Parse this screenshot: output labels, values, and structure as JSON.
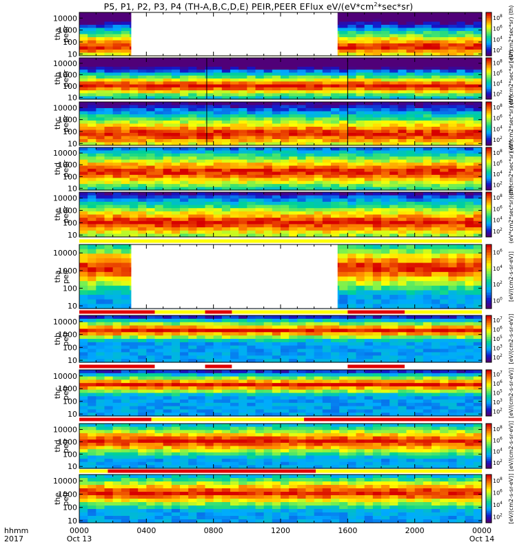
{
  "title": {
    "prefix": "P5, P1, P2, P3, P4 (TH-A,B,C,D,E) PEIR,PEER EFlux eV/(eV*cm",
    "sup": "2",
    "suffix": "*sec*sr)"
  },
  "footer": {
    "row1_label": "hhmm",
    "row2_label": "2017",
    "date_start": "Oct 13",
    "date_end": "Oct 14"
  },
  "colors": {
    "red": "#e00000",
    "yellow": "#ffff00",
    "white": "#ffffff"
  },
  "chart_data": {
    "type": "heatmap",
    "title": "P5, P1, P2, P3, P4 (TH-A,B,C,D,E) PEIR,PEER EFlux eV/(eV*cm2*sec*sr)",
    "x_axis": {
      "unit": "hhmm",
      "range": [
        0,
        24
      ],
      "tick_labels": [
        "0000",
        "0400",
        "0800",
        "1200",
        "1600",
        "2000",
        "0000"
      ],
      "tick_values": [
        0,
        4,
        8,
        12,
        16,
        20,
        24
      ],
      "minor_step": 1
    },
    "y_axis": {
      "scale": "log",
      "range": [
        7,
        30000
      ],
      "tick_labels": [
        "10",
        "100",
        "1000",
        "10000"
      ],
      "tick_values": [
        10,
        100,
        1000,
        10000
      ]
    },
    "panels": [
      {
        "probe": "tha",
        "species": "peer",
        "label_probe": "tha",
        "label_type": "peer",
        "gaps": [
          [
            3.1,
            15.4
          ]
        ],
        "core_log": [
          1.0,
          2.2
        ],
        "mode": "electron",
        "colorbar": {
          "stack": [
            {
              "exp": "8"
            },
            {
              "exp": "6"
            },
            {
              "exp": "4"
            },
            {
              "exp": "2"
            }
          ],
          "side": "(eV*cm2*sec*sr) (th)"
        }
      },
      {
        "probe": "thb",
        "species": "peer",
        "label_probe": "thb",
        "label_type": "peer",
        "gaps": [],
        "core_log": [
          1.6,
          2.4
        ],
        "mode": "electron",
        "lines": [
          7.6,
          16.0
        ],
        "colorbar": {
          "stack": [
            {
              "exp": "8"
            },
            {
              "exp": "6"
            },
            {
              "exp": "4"
            },
            {
              "exp": "2"
            }
          ],
          "side": "(eV*cm2*sec*sr) (th)"
        }
      },
      {
        "probe": "thc",
        "species": "peer",
        "label_probe": "thc",
        "label_type": "peer",
        "gaps": [],
        "core_log": [
          1.0,
          2.6
        ],
        "mode": "electron",
        "lines": [
          7.6,
          16.0
        ],
        "colorbar": {
          "stack": [
            {
              "exp": "8"
            },
            {
              "exp": "6"
            },
            {
              "exp": "4"
            },
            {
              "exp": "2"
            }
          ],
          "side": "(eV*cm2*sec*sr) (th)"
        }
      },
      {
        "probe": "thd",
        "species": "peer",
        "label_probe": "thd",
        "label_type": "peer",
        "gaps": [],
        "core_log": [
          1.6,
          3.2
        ],
        "mode": "electron",
        "colorbar": {
          "stack": [
            {
              "exp": "8"
            },
            {
              "exp": "6"
            },
            {
              "exp": "4"
            },
            {
              "exp": "2"
            }
          ],
          "side": "(eV*cm2*sec*sr) (th)"
        }
      },
      {
        "probe": "the",
        "species": "peer",
        "label_probe": "the",
        "label_type": "peer",
        "gaps": [],
        "core_log": [
          1.2,
          2.8
        ],
        "mode": "electron",
        "colorbar": {
          "stack": [
            {
              "exp": "8"
            },
            {
              "exp": "6"
            },
            {
              "exp": "4"
            },
            {
              "exp": "2"
            }
          ],
          "side": "(eV*cm2*sec*sr) (th)"
        }
      },
      {
        "probe": "tha",
        "species": "peir",
        "label_probe": "tha",
        "label_type": "peir",
        "gaps": [
          [
            3.1,
            15.4
          ]
        ],
        "core_log": [
          2.5,
          3.8
        ],
        "mode": "ion",
        "colorbar": {
          "stack": [
            {
              "exp": "6"
            },
            {
              "exp": "4"
            },
            {
              "exp": "2"
            },
            {
              "exp": "0"
            }
          ],
          "side": "[eV/(cm2-s-sr-eV)]"
        },
        "mode_bar": [
          {
            "from": 0,
            "to": 24,
            "color": "yellow"
          }
        ]
      },
      {
        "probe": "thb",
        "species": "peir",
        "label_probe": "thb",
        "label_type": "peir",
        "gaps": [],
        "core_log": [
          3.1,
          3.5
        ],
        "mode": "ion",
        "colorbar": {
          "stack": [
            {
              "exp": "7"
            },
            {
              "exp": "6"
            },
            {
              "exp": "5"
            },
            {
              "exp": "3"
            },
            {
              "exp": "2"
            }
          ],
          "side": "[eV/(cm2-s-sr-eV)]"
        },
        "mode_bar": [
          {
            "from": 0,
            "to": 4.5,
            "color": "red"
          },
          {
            "from": 4.5,
            "to": 7.5,
            "color": "yellow"
          },
          {
            "from": 7.5,
            "to": 9.1,
            "color": "red"
          },
          {
            "from": 9.1,
            "to": 16.0,
            "color": "yellow"
          },
          {
            "from": 16.0,
            "to": 19.4,
            "color": "red"
          },
          {
            "from": 19.4,
            "to": 24,
            "color": "yellow"
          }
        ]
      },
      {
        "probe": "thc",
        "species": "peir",
        "label_probe": "thc",
        "label_type": "peir",
        "gaps": [],
        "core_log": [
          3.1,
          3.5
        ],
        "mode": "ion",
        "colorbar": {
          "stack": [
            {
              "exp": "7"
            },
            {
              "exp": "6"
            },
            {
              "exp": "5"
            },
            {
              "exp": "3"
            },
            {
              "exp": "2"
            }
          ],
          "side": "[eV/(cm2-s-sr-eV)]"
        },
        "mode_bar": [
          {
            "from": 0,
            "to": 4.5,
            "color": "red"
          },
          {
            "from": 4.5,
            "to": 7.5,
            "color": "white"
          },
          {
            "from": 7.5,
            "to": 9.1,
            "color": "red"
          },
          {
            "from": 9.1,
            "to": 16.0,
            "color": "white"
          },
          {
            "from": 16.0,
            "to": 19.4,
            "color": "red"
          },
          {
            "from": 19.4,
            "to": 24,
            "color": "white"
          }
        ]
      },
      {
        "probe": "thd",
        "species": "peir",
        "label_probe": "thd",
        "label_type": "peir",
        "gaps": [],
        "core_log": [
          2.5,
          3.6
        ],
        "mode": "ion",
        "colorbar": {
          "stack": [
            {
              "exp": "8"
            },
            {
              "exp": "6"
            },
            {
              "exp": "4"
            },
            {
              "exp": "2"
            }
          ],
          "side": "[eV/(cm2-s-sr-eV)]"
        },
        "mode_bar": [
          {
            "from": 0,
            "to": 4.3,
            "color": "red"
          },
          {
            "from": 4.3,
            "to": 13.4,
            "color": "yellow"
          },
          {
            "from": 13.4,
            "to": 24,
            "color": "red"
          }
        ]
      },
      {
        "probe": "the",
        "species": "peir",
        "label_probe": "the",
        "label_type": "peir",
        "gaps": [],
        "core_log": [
          2.6,
          3.6
        ],
        "mode": "ion",
        "colorbar": {
          "stack": [
            {
              "exp": "8"
            },
            {
              "exp": "6"
            },
            {
              "exp": "4"
            },
            {
              "exp": "2"
            }
          ],
          "side": "[eV/(cm2-s-sr-eV)]"
        },
        "mode_bar": [
          {
            "from": 0,
            "to": 1.7,
            "color": "yellow"
          },
          {
            "from": 1.7,
            "to": 14.1,
            "color": "red"
          },
          {
            "from": 14.1,
            "to": 24,
            "color": "yellow"
          }
        ]
      }
    ]
  }
}
